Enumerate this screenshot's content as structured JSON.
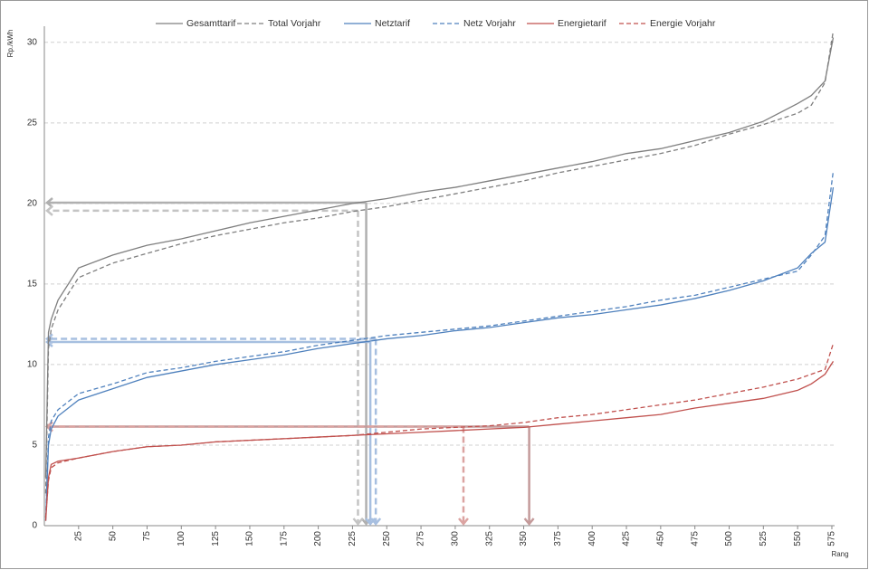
{
  "chart_data": {
    "type": "line",
    "y_label": "Rp./kWh",
    "x_label": "Rang",
    "x": [
      1,
      3,
      5,
      10,
      25,
      50,
      75,
      100,
      125,
      150,
      175,
      200,
      225,
      250,
      275,
      300,
      325,
      350,
      375,
      400,
      425,
      450,
      475,
      500,
      525,
      550,
      560,
      570,
      576
    ],
    "series": [
      {
        "name": "Gesamttarif",
        "color": "#7f7f7f",
        "dashed": false,
        "values": [
          3,
          12,
          12.8,
          14,
          16,
          16.8,
          17.4,
          17.8,
          18.3,
          18.8,
          19.2,
          19.6,
          20.0,
          20.3,
          20.7,
          21.0,
          21.4,
          21.8,
          22.2,
          22.6,
          23.1,
          23.4,
          23.9,
          24.4,
          25.1,
          26.2,
          26.7,
          27.6,
          30.3
        ]
      },
      {
        "name": "Total Vorjahr",
        "color": "#7f7f7f",
        "dashed": true,
        "values": [
          2,
          11,
          12.2,
          13.4,
          15.4,
          16.3,
          16.9,
          17.5,
          18.0,
          18.4,
          18.8,
          19.1,
          19.5,
          19.8,
          20.2,
          20.6,
          21.0,
          21.4,
          21.9,
          22.3,
          22.7,
          23.1,
          23.6,
          24.3,
          24.9,
          25.6,
          26.1,
          27.5,
          30.7
        ]
      },
      {
        "name": "Netztarif",
        "color": "#4f81bd",
        "dashed": false,
        "values": [
          0.3,
          5,
          6,
          6.8,
          7.8,
          8.5,
          9.2,
          9.6,
          10.0,
          10.3,
          10.6,
          11.0,
          11.3,
          11.6,
          11.8,
          12.1,
          12.3,
          12.6,
          12.9,
          13.1,
          13.4,
          13.7,
          14.1,
          14.6,
          15.2,
          16.0,
          16.9,
          17.6,
          21
        ]
      },
      {
        "name": "Netz Vorjahr",
        "color": "#4f81bd",
        "dashed": true,
        "values": [
          0.5,
          5.5,
          6.5,
          7.2,
          8.2,
          8.8,
          9.5,
          9.8,
          10.2,
          10.5,
          10.8,
          11.2,
          11.5,
          11.8,
          12.0,
          12.2,
          12.4,
          12.7,
          13.0,
          13.3,
          13.6,
          14.0,
          14.3,
          14.8,
          15.3,
          15.8,
          16.8,
          18.0,
          22
        ]
      },
      {
        "name": "Energietarif",
        "color": "#c0504d",
        "dashed": false,
        "values": [
          0.3,
          3.0,
          3.8,
          4.0,
          4.2,
          4.6,
          4.9,
          5.0,
          5.2,
          5.3,
          5.4,
          5.5,
          5.6,
          5.7,
          5.8,
          5.9,
          6.0,
          6.1,
          6.3,
          6.5,
          6.7,
          6.9,
          7.3,
          7.6,
          7.9,
          8.4,
          8.8,
          9.4,
          10.2
        ]
      },
      {
        "name": "Energie Vorjahr",
        "color": "#c0504d",
        "dashed": true,
        "values": [
          0.5,
          2.8,
          3.6,
          3.9,
          4.2,
          4.6,
          4.9,
          5.0,
          5.2,
          5.3,
          5.4,
          5.5,
          5.6,
          5.8,
          6.0,
          6.1,
          6.2,
          6.4,
          6.7,
          6.9,
          7.2,
          7.5,
          7.8,
          8.2,
          8.6,
          9.1,
          9.4,
          9.7,
          11.3
        ]
      }
    ],
    "guides": [
      {
        "x": 235,
        "y": 20.05,
        "color": "#b0b0b0",
        "dashed": false
      },
      {
        "x": 229,
        "y": 19.55,
        "color": "#c4c4c4",
        "dashed": true
      },
      {
        "x": 238,
        "y": 11.4,
        "color": "#a7bfe0",
        "dashed": false
      },
      {
        "x": 242,
        "y": 11.6,
        "color": "#a7bfe0",
        "dashed": true
      },
      {
        "x": 354,
        "y": 6.15,
        "color": "#c49a9a",
        "dashed": false
      },
      {
        "x": 306,
        "y": 6.15,
        "color": "#dba3a1",
        "dashed": true
      }
    ],
    "xlim": [
      0,
      577
    ],
    "ylim": [
      0,
      31
    ],
    "xticks": [
      25,
      50,
      75,
      100,
      125,
      150,
      175,
      200,
      225,
      250,
      275,
      300,
      325,
      350,
      375,
      400,
      425,
      450,
      475,
      500,
      525,
      550,
      575
    ],
    "yticks": [
      0,
      5,
      10,
      15,
      20,
      25,
      30
    ],
    "grid": true
  }
}
